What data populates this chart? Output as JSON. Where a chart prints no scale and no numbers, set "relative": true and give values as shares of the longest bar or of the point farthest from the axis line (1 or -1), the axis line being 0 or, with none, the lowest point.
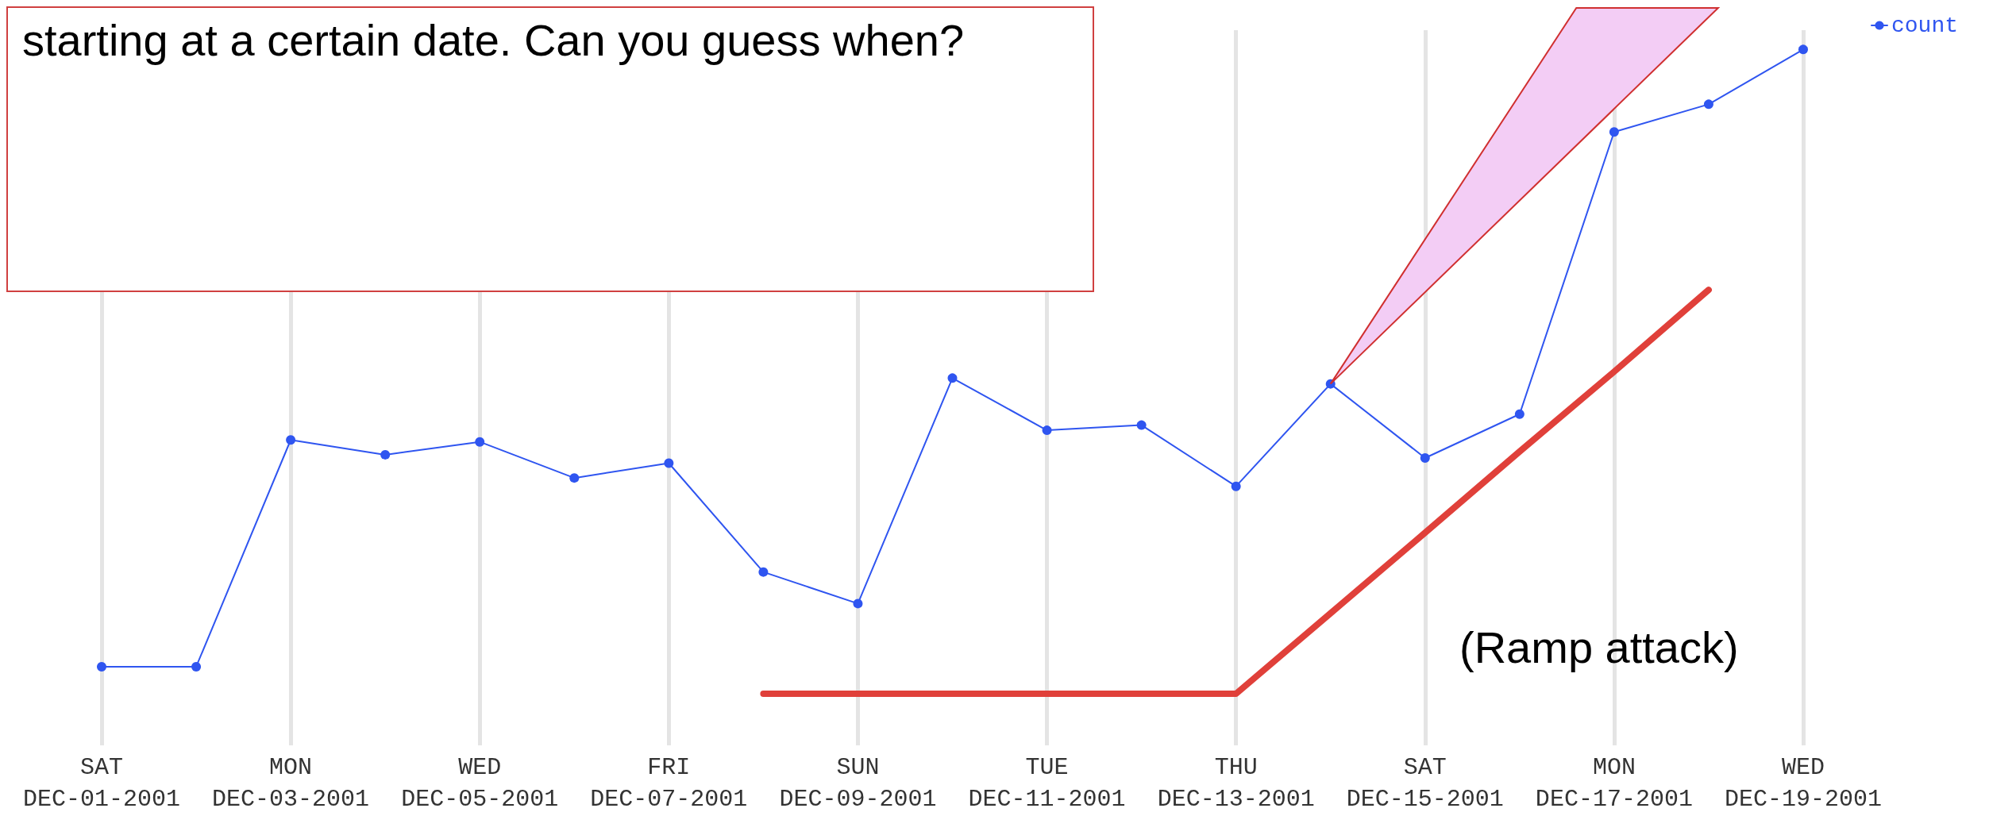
{
  "chart_data": {
    "type": "line",
    "relative": true,
    "categories": [
      "SAT\nDEC-01-2001",
      null,
      "MON\nDEC-03-2001",
      null,
      "WED\nDEC-05-2001",
      null,
      "FRI\nDEC-07-2001",
      null,
      "SUN\nDEC-09-2001",
      null,
      "TUE\nDEC-11-2001",
      null,
      "THU\nDEC-13-2001",
      null,
      "SAT\nDEC-15-2001",
      null,
      "MON\nDEC-17-2001",
      null,
      "WED\nDEC-19-2001"
    ],
    "series": [
      {
        "name": "count",
        "color": "#2f55f0",
        "values": [
          0.042,
          0.042,
          0.394,
          0.371,
          0.391,
          0.335,
          0.358,
          0.189,
          0.14,
          0.49,
          0.409,
          0.417,
          0.322,
          0.481,
          0.366,
          0.434,
          0.872,
          0.915,
          1
        ]
      },
      {
        "color": "#e0403a",
        "marker": "none",
        "values": [
          null,
          null,
          null,
          null,
          null,
          null,
          null,
          0,
          0,
          0,
          0,
          0,
          0,
          0.125,
          0.25,
          0.376,
          0.5,
          0.627,
          null
        ]
      }
    ],
    "grid": "x",
    "legend": "top right",
    "marker": "circle",
    "line_style": "solid",
    "annotations": [
      "starting at a certain date. Can you guess when?",
      "(Ramp attack)"
    ]
  }
}
